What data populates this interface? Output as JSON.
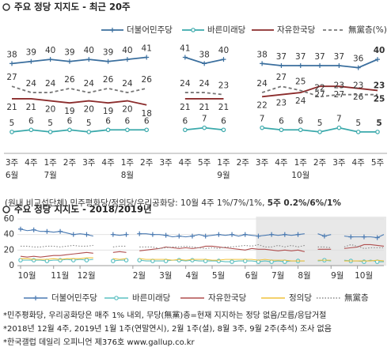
{
  "chart_data": [
    {
      "type": "line",
      "title": "주요 정당 지지도 - 최근 20주",
      "categories": [
        "3주",
        "4주",
        "1주",
        "2주",
        "3주",
        "4주",
        "1주",
        "2주",
        "3주",
        "4주",
        "5주",
        "1주",
        "2주",
        "3주",
        "4주",
        "1주",
        "2주",
        "3주",
        "4주",
        "5주"
      ],
      "months": [
        "6월",
        null,
        "7월",
        null,
        null,
        null,
        "8월",
        null,
        null,
        null,
        null,
        "9월",
        null,
        null,
        null,
        "10월",
        null,
        null,
        null,
        null
      ],
      "ylim": [
        0,
        45
      ],
      "series": [
        {
          "name": "더불어민주당",
          "color": "#3b6f9e",
          "marker": "plus",
          "values": [
            38,
            39,
            40,
            39,
            40,
            39,
            40,
            41,
            null,
            41,
            38,
            40,
            null,
            38,
            37,
            37,
            37,
            37,
            36,
            40
          ]
        },
        {
          "name": "바른미래당",
          "color": "#3aa9ab",
          "marker": "circle",
          "values": [
            5,
            6,
            5,
            6,
            5,
            6,
            6,
            6,
            null,
            6,
            7,
            6,
            null,
            7,
            6,
            6,
            5,
            7,
            5,
            5
          ]
        },
        {
          "name": "자유한국당",
          "color": "#8b2c2c",
          "values": [
            21,
            21,
            20,
            19,
            20,
            19,
            20,
            18,
            null,
            21,
            21,
            21,
            null,
            22,
            23,
            24,
            27,
            27,
            26,
            25
          ]
        },
        {
          "name": "無黨층(%)",
          "color": "#777777",
          "dashed": true,
          "values": [
            27,
            24,
            24,
            26,
            24,
            26,
            24,
            26,
            null,
            24,
            24,
            23,
            null,
            24,
            27,
            25,
            22,
            23,
            23,
            23
          ]
        }
      ],
      "note": "(원내 비교섭단체) 민주평화당/정의당/우리공화당: 10월 4주 1%/7%/1%,",
      "note_bold": "5주 0.2%/6%/1%"
    },
    {
      "type": "line",
      "title": "주요 정당 지지도 - 2018/2019년",
      "categories": [
        "10월",
        null,
        null,
        null,
        null,
        "11월",
        null,
        null,
        null,
        "12월",
        null,
        null,
        null,
        null,
        null,
        null,
        null,
        "2월",
        null,
        null,
        null,
        "3월",
        null,
        null,
        null,
        "4월",
        null,
        null,
        null,
        "5월",
        null,
        null,
        null,
        null,
        "6월",
        null,
        null,
        null,
        "7월",
        null,
        null,
        null,
        "8월",
        null,
        null,
        null,
        null,
        "9월",
        null,
        null,
        null,
        "10월",
        null,
        null,
        null,
        null
      ],
      "ylim": [
        0,
        60
      ],
      "yticks": [
        0,
        20,
        40,
        60
      ],
      "grid": true,
      "series": [
        {
          "name": "더불어민주당",
          "color": "#4a7ab2",
          "marker": "plus",
          "values": [
            47,
            45,
            46,
            44,
            44,
            43,
            44,
            42,
            40,
            41,
            40,
            38,
            null,
            null,
            40,
            39,
            40,
            null,
            41,
            41,
            40,
            40,
            39,
            37,
            38,
            37,
            38,
            40,
            38,
            39,
            40,
            39,
            40,
            38,
            40,
            39,
            38,
            39,
            40,
            39,
            40,
            39,
            40,
            41,
            null,
            41,
            38,
            40,
            null,
            38,
            37,
            37,
            37,
            37,
            36,
            40
          ]
        },
        {
          "name": "바른미래당",
          "color": "#5cc0c2",
          "marker": "circle",
          "values": [
            7,
            7,
            7,
            7,
            6,
            7,
            7,
            8,
            7,
            8,
            7,
            8,
            null,
            null,
            6,
            7,
            7,
            null,
            7,
            6,
            6,
            6,
            6,
            7,
            7,
            6,
            7,
            6,
            6,
            6,
            6,
            5,
            5,
            6,
            6,
            6,
            5,
            6,
            5,
            6,
            5,
            6,
            6,
            6,
            null,
            6,
            7,
            6,
            null,
            7,
            6,
            6,
            5,
            7,
            5,
            5
          ]
        },
        {
          "name": "자유한국당",
          "color": "#b04f4f",
          "values": [
            12,
            11,
            12,
            11,
            12,
            13,
            13,
            14,
            15,
            16,
            17,
            16,
            null,
            null,
            17,
            18,
            17,
            null,
            19,
            20,
            21,
            22,
            24,
            23,
            22,
            23,
            22,
            23,
            25,
            25,
            24,
            23,
            22,
            21,
            20,
            22,
            21,
            21,
            20,
            19,
            20,
            19,
            20,
            18,
            null,
            21,
            21,
            21,
            null,
            22,
            23,
            24,
            27,
            27,
            26,
            25
          ]
        },
        {
          "name": "정의당",
          "color": "#f0c23c",
          "values": [
            9,
            9,
            8,
            8,
            8,
            9,
            8,
            9,
            9,
            9,
            10,
            10,
            null,
            null,
            9,
            8,
            9,
            null,
            9,
            8,
            8,
            8,
            8,
            7,
            8,
            7,
            8,
            8,
            8,
            7,
            7,
            8,
            8,
            8,
            8,
            8,
            7,
            8,
            7,
            7,
            7,
            6,
            6,
            6,
            null,
            7,
            7,
            7,
            null,
            6,
            6,
            6,
            6,
            6,
            7,
            6
          ]
        },
        {
          "name": "無黨층",
          "color": "#888888",
          "dotted": true,
          "values": [
            25,
            25,
            24,
            24,
            25,
            25,
            24,
            25,
            26,
            25,
            25,
            26,
            null,
            null,
            24,
            25,
            25,
            null,
            24,
            24,
            24,
            22,
            23,
            24,
            24,
            25,
            24,
            23,
            22,
            23,
            22,
            24,
            24,
            25,
            26,
            25,
            27,
            24,
            24,
            26,
            24,
            26,
            24,
            26,
            null,
            24,
            24,
            23,
            null,
            24,
            27,
            25,
            22,
            23,
            23,
            23
          ]
        }
      ]
    }
  ],
  "footnotes": [
    "*민주평화당, 우리공화당은 매주 1% 내외, 무당(無黨)층=현재 지지하는 정당 없음/모름/응답거절",
    "*2018년 12월 4주, 2019년 1월 1주(연말연시), 2월 1주(설), 8월 3주, 9월 2주(추석) 조사 없음",
    "*한국갤럽 데일리 오피니언 제376호 www.gallup.co.kr"
  ]
}
